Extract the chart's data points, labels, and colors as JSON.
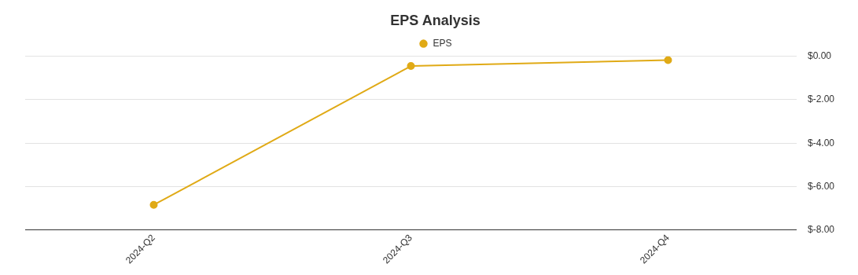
{
  "chart_data": {
    "type": "line",
    "title": "EPS Analysis",
    "categories": [
      "2024-Q2",
      "2024-Q3",
      "2024-Q4"
    ],
    "series": [
      {
        "name": "EPS",
        "color": "#e0aa16",
        "values": [
          -6.84,
          -0.45,
          -0.18
        ]
      }
    ],
    "ylim": [
      -8,
      0
    ],
    "yticks": [
      {
        "value": 0,
        "label": "$0.00"
      },
      {
        "value": -2,
        "label": "$-2.00"
      },
      {
        "value": -4,
        "label": "$-4.00"
      },
      {
        "value": -6,
        "label": "$-6.00"
      },
      {
        "value": -8,
        "label": "$-8.00"
      }
    ],
    "grid": "y",
    "legend": "top",
    "marker": "circle",
    "line_style": "solid"
  }
}
